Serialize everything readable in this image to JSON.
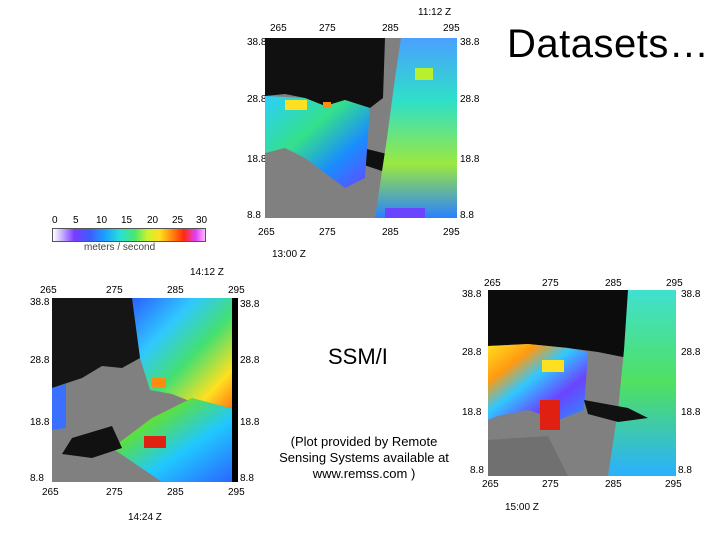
{
  "slide": {
    "title": "Datasets…",
    "instrument": "SSM/I",
    "credit": "(Plot provided by Remote Sensing Systems available at www.remss.com )"
  },
  "colorbar": {
    "ticks": [
      "0",
      "5",
      "10",
      "15",
      "20",
      "25",
      "30"
    ],
    "unit": "meters / second"
  },
  "maps": [
    {
      "id": "top",
      "time_top": "11:12 Z",
      "time_bottom": "13:00 Z",
      "lon_ticks": [
        "265",
        "275",
        "285",
        "295"
      ],
      "lat_ticks": [
        "38.8",
        "28.8",
        "18.8",
        "8.8"
      ]
    },
    {
      "id": "bottom-left",
      "time_top": "14:12 Z",
      "time_bottom": "14:24 Z",
      "lon_ticks": [
        "265",
        "275",
        "285",
        "295"
      ],
      "lat_ticks": [
        "38.8",
        "28.8",
        "18.8",
        "8.8"
      ]
    },
    {
      "id": "bottom-right",
      "time_bottom": "15:00 Z",
      "lon_ticks": [
        "265",
        "275",
        "285",
        "295"
      ],
      "lat_ticks": [
        "38.8",
        "28.8",
        "18.8",
        "8.8"
      ]
    }
  ]
}
